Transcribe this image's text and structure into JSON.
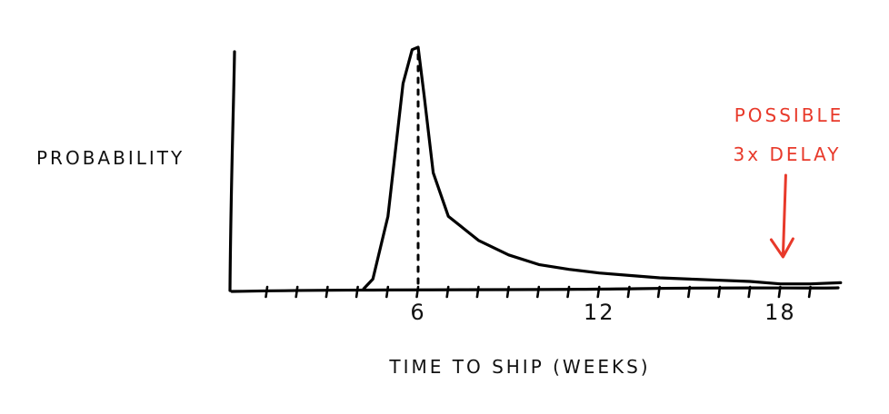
{
  "chart_data": {
    "type": "line",
    "title": "",
    "xlabel": "TIME TO SHIP (WEEKS)",
    "ylabel": "PROBABILITY",
    "xlim": [
      -6,
      20
    ],
    "ylim": [
      0,
      1
    ],
    "tick_labels": [
      "6",
      "12",
      "18"
    ],
    "series": [
      {
        "x": [
          4.2,
          4.5,
          5,
          5.5,
          5.8,
          6,
          6.2,
          6.5,
          7,
          8,
          9,
          10,
          11,
          12,
          13,
          14,
          15,
          16,
          17,
          18,
          19,
          20
        ],
        "y": [
          0,
          0.04,
          0.3,
          0.85,
          0.99,
          1,
          0.8,
          0.48,
          0.3,
          0.2,
          0.14,
          0.1,
          0.08,
          0.065,
          0.055,
          0.045,
          0.04,
          0.035,
          0.03,
          0.02,
          0.02,
          0.025
        ]
      }
    ],
    "mode_x": 6,
    "annotation": {
      "line1": "POSSIBLE",
      "line2": "3x DELAY",
      "x": 18,
      "color": "#e8392a"
    }
  }
}
